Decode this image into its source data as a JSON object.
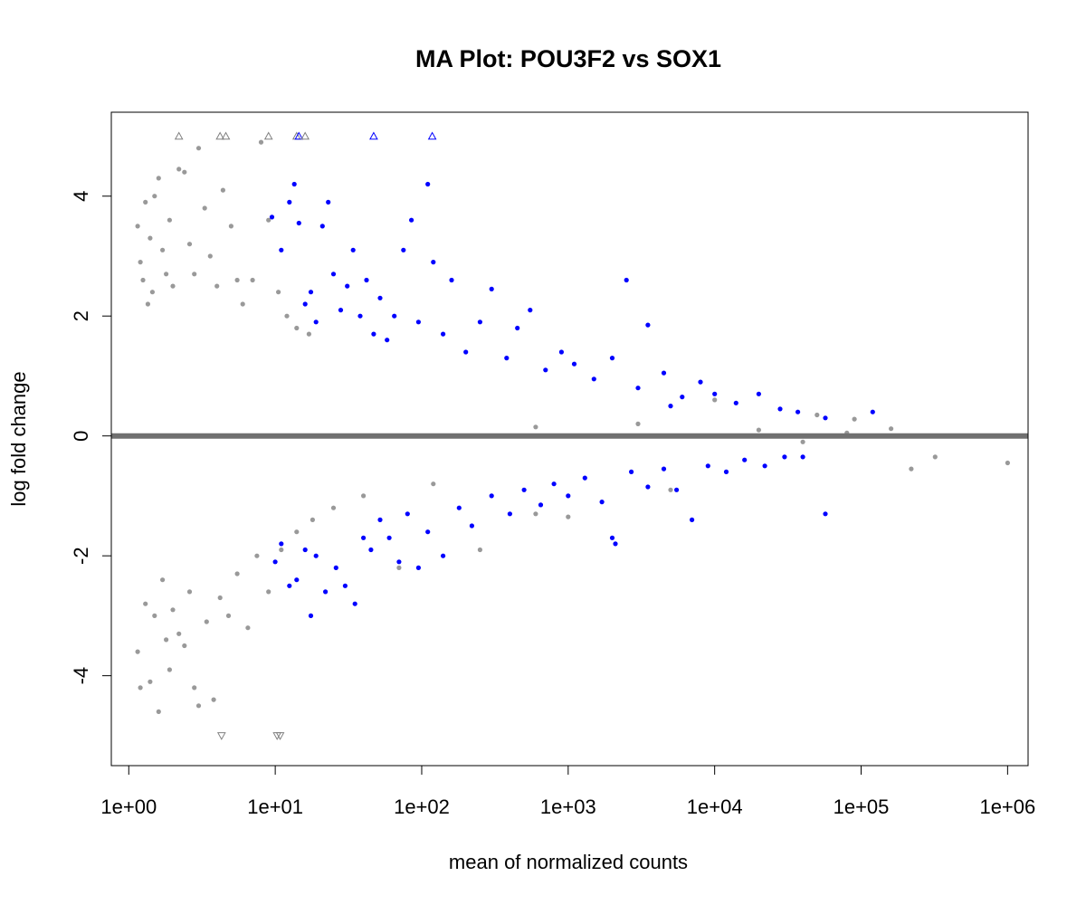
{
  "chart_data": {
    "type": "scatter",
    "title": "MA Plot: POU3F2 vs SOX1",
    "xlabel": "mean of normalized counts",
    "ylabel": "log fold change",
    "x_scale": "log10",
    "xlim": [
      0.76,
      1380000
    ],
    "ylim": [
      -5.5,
      5.4
    ],
    "x_ticks": [
      {
        "value": 1,
        "label": "1e+00"
      },
      {
        "value": 10,
        "label": "1e+01"
      },
      {
        "value": 100,
        "label": "1e+02"
      },
      {
        "value": 1000,
        "label": "1e+03"
      },
      {
        "value": 10000,
        "label": "1e+04"
      },
      {
        "value": 100000,
        "label": "1e+05"
      },
      {
        "value": 1000000,
        "label": "1e+06"
      }
    ],
    "y_ticks": [
      {
        "value": -4,
        "label": "-4"
      },
      {
        "value": -2,
        "label": "-2"
      },
      {
        "value": 0,
        "label": "0"
      },
      {
        "value": 2,
        "label": "2"
      },
      {
        "value": 4,
        "label": "4"
      }
    ],
    "reference_line": {
      "y": 0,
      "color": "#707070"
    },
    "grid": false,
    "legend": "none",
    "colors": {
      "not_significant": "#999999",
      "significant": "#0000FF"
    },
    "series": [
      {
        "key": "gray_dense",
        "color": "#999999",
        "points": [
          [
            1.15,
            3.5
          ],
          [
            1.2,
            2.9
          ],
          [
            1.25,
            2.6
          ],
          [
            1.3,
            3.9
          ],
          [
            1.35,
            2.2
          ],
          [
            1.4,
            3.3
          ],
          [
            1.45,
            2.4
          ],
          [
            1.5,
            4.0
          ],
          [
            1.6,
            4.3
          ],
          [
            1.7,
            3.1
          ],
          [
            1.8,
            2.7
          ],
          [
            1.9,
            3.6
          ],
          [
            2.0,
            2.5
          ],
          [
            2.2,
            4.45
          ],
          [
            2.4,
            4.4
          ],
          [
            2.6,
            3.2
          ],
          [
            2.8,
            2.7
          ],
          [
            3.0,
            4.8
          ],
          [
            3.3,
            3.8
          ],
          [
            3.6,
            3.0
          ],
          [
            4.0,
            2.5
          ],
          [
            4.4,
            4.1
          ],
          [
            5.0,
            3.5
          ],
          [
            5.5,
            2.6
          ],
          [
            6.0,
            2.2
          ],
          [
            7.0,
            2.6
          ],
          [
            8.0,
            4.9
          ],
          [
            9.0,
            3.6
          ],
          [
            10.5,
            2.4
          ],
          [
            12.0,
            2.0
          ],
          [
            14.0,
            1.8
          ],
          [
            17.0,
            1.7
          ],
          [
            1.15,
            -3.6
          ],
          [
            1.2,
            -4.2
          ],
          [
            1.3,
            -2.8
          ],
          [
            1.4,
            -4.1
          ],
          [
            1.5,
            -3.0
          ],
          [
            1.6,
            -4.6
          ],
          [
            1.7,
            -2.4
          ],
          [
            1.8,
            -3.4
          ],
          [
            1.9,
            -3.9
          ],
          [
            2.0,
            -2.9
          ],
          [
            2.2,
            -3.3
          ],
          [
            2.4,
            -3.5
          ],
          [
            2.6,
            -2.6
          ],
          [
            2.8,
            -4.2
          ],
          [
            3.0,
            -4.5
          ],
          [
            3.4,
            -3.1
          ],
          [
            3.8,
            -4.4
          ],
          [
            4.2,
            -2.7
          ],
          [
            4.8,
            -3.0
          ],
          [
            5.5,
            -2.3
          ],
          [
            6.5,
            -3.2
          ],
          [
            7.5,
            -2.0
          ],
          [
            9.0,
            -2.6
          ],
          [
            11.0,
            -1.9
          ],
          [
            14.0,
            -1.6
          ],
          [
            18.0,
            -1.4
          ],
          [
            25.0,
            -1.2
          ],
          [
            40.0,
            -1.0
          ],
          [
            70.0,
            -2.2
          ],
          [
            120.0,
            -0.8
          ],
          [
            250.0,
            -1.9
          ],
          [
            600.0,
            -1.3
          ],
          [
            1000.0,
            -1.35
          ],
          [
            5000.0,
            -0.9
          ],
          [
            10000.0,
            0.6
          ],
          [
            50000.0,
            0.35
          ],
          [
            90000.0,
            0.28
          ],
          [
            160000.0,
            0.12
          ],
          [
            220000.0,
            -0.55
          ],
          [
            320000.0,
            -0.35
          ],
          [
            1000000.0,
            -0.45
          ],
          [
            80000.0,
            0.05
          ],
          [
            40000.0,
            -0.1
          ],
          [
            20000.0,
            0.1
          ],
          [
            3000.0,
            0.2
          ],
          [
            600.0,
            0.15
          ]
        ]
      },
      {
        "key": "blue_up",
        "color": "#0000FF",
        "points": [
          [
            9.5,
            3.65
          ],
          [
            11.0,
            3.1
          ],
          [
            12.5,
            3.9
          ],
          [
            13.5,
            4.2
          ],
          [
            14.5,
            3.55
          ],
          [
            16.0,
            2.2
          ],
          [
            17.5,
            2.4
          ],
          [
            19.0,
            1.9
          ],
          [
            21.0,
            3.5
          ],
          [
            23.0,
            3.9
          ],
          [
            25.0,
            2.7
          ],
          [
            28.0,
            2.1
          ],
          [
            31.0,
            2.5
          ],
          [
            34.0,
            3.1
          ],
          [
            38.0,
            2.0
          ],
          [
            42.0,
            2.6
          ],
          [
            47.0,
            1.7
          ],
          [
            52.0,
            2.3
          ],
          [
            58.0,
            1.6
          ],
          [
            65.0,
            2.0
          ],
          [
            75.0,
            3.1
          ],
          [
            85.0,
            3.6
          ],
          [
            95.0,
            1.9
          ],
          [
            110.0,
            4.2
          ],
          [
            120.0,
            2.9
          ],
          [
            140.0,
            1.7
          ],
          [
            160.0,
            2.6
          ],
          [
            200.0,
            1.4
          ],
          [
            250.0,
            1.9
          ],
          [
            300.0,
            2.45
          ],
          [
            380.0,
            1.3
          ],
          [
            450.0,
            1.8
          ],
          [
            550.0,
            2.1
          ],
          [
            700.0,
            1.1
          ],
          [
            900.0,
            1.4
          ],
          [
            1100.0,
            1.2
          ],
          [
            1500.0,
            0.95
          ],
          [
            2000.0,
            1.3
          ],
          [
            2500.0,
            2.6
          ],
          [
            3000.0,
            0.8
          ],
          [
            3500.0,
            1.85
          ],
          [
            4500.0,
            1.05
          ],
          [
            6000.0,
            0.65
          ],
          [
            8000.0,
            0.9
          ],
          [
            10000.0,
            0.7
          ],
          [
            14000.0,
            0.55
          ],
          [
            20000.0,
            0.7
          ],
          [
            28000.0,
            0.45
          ],
          [
            37000.0,
            0.4
          ],
          [
            57000.0,
            0.3
          ],
          [
            120000.0,
            0.4
          ],
          [
            5000.0,
            0.5
          ]
        ]
      },
      {
        "key": "blue_down",
        "color": "#0000FF",
        "points": [
          [
            10.0,
            -2.1
          ],
          [
            11.0,
            -1.8
          ],
          [
            12.5,
            -2.5
          ],
          [
            14.0,
            -2.4
          ],
          [
            16.0,
            -1.9
          ],
          [
            17.5,
            -3.0
          ],
          [
            19.0,
            -2.0
          ],
          [
            22.0,
            -2.6
          ],
          [
            26.0,
            -2.2
          ],
          [
            30.0,
            -2.5
          ],
          [
            35.0,
            -2.8
          ],
          [
            40.0,
            -1.7
          ],
          [
            45.0,
            -1.9
          ],
          [
            52.0,
            -1.4
          ],
          [
            60.0,
            -1.7
          ],
          [
            70.0,
            -2.1
          ],
          [
            80.0,
            -1.3
          ],
          [
            95.0,
            -2.2
          ],
          [
            110.0,
            -1.6
          ],
          [
            140.0,
            -2.0
          ],
          [
            180.0,
            -1.2
          ],
          [
            220.0,
            -1.5
          ],
          [
            300.0,
            -1.0
          ],
          [
            400.0,
            -1.3
          ],
          [
            500.0,
            -0.9
          ],
          [
            650.0,
            -1.15
          ],
          [
            800.0,
            -0.8
          ],
          [
            1000.0,
            -1.0
          ],
          [
            1300.0,
            -0.7
          ],
          [
            1700.0,
            -1.1
          ],
          [
            2100.0,
            -1.8
          ],
          [
            2700.0,
            -0.6
          ],
          [
            3500.0,
            -0.85
          ],
          [
            4500.0,
            -0.55
          ],
          [
            5500.0,
            -0.9
          ],
          [
            7000.0,
            -1.4
          ],
          [
            9000.0,
            -0.5
          ],
          [
            12000.0,
            -0.6
          ],
          [
            16000.0,
            -0.4
          ],
          [
            22000.0,
            -0.5
          ],
          [
            30000.0,
            -0.35
          ],
          [
            40000.0,
            -0.35
          ],
          [
            57000.0,
            -1.3
          ],
          [
            2000.0,
            -1.7
          ]
        ]
      }
    ],
    "clipped_points": [
      {
        "x": 2.2,
        "y": 5.0,
        "direction": "up",
        "color": "#808080"
      },
      {
        "x": 4.2,
        "y": 5.0,
        "direction": "up",
        "color": "#808080"
      },
      {
        "x": 4.6,
        "y": 5.0,
        "direction": "up",
        "color": "#808080"
      },
      {
        "x": 9.0,
        "y": 5.0,
        "direction": "up",
        "color": "#808080"
      },
      {
        "x": 14.0,
        "y": 5.0,
        "direction": "up",
        "color": "#808080"
      },
      {
        "x": 14.5,
        "y": 5.0,
        "direction": "up",
        "color": "#0000FF"
      },
      {
        "x": 16.0,
        "y": 5.0,
        "direction": "up",
        "color": "#808080"
      },
      {
        "x": 47.0,
        "y": 5.0,
        "direction": "up",
        "color": "#0000FF"
      },
      {
        "x": 118.0,
        "y": 5.0,
        "direction": "up",
        "color": "#0000FF"
      },
      {
        "x": 4.3,
        "y": -5.0,
        "direction": "down",
        "color": "#808080"
      },
      {
        "x": 10.3,
        "y": -5.0,
        "direction": "down",
        "color": "#808080"
      },
      {
        "x": 10.8,
        "y": -5.0,
        "direction": "down",
        "color": "#808080"
      }
    ]
  }
}
